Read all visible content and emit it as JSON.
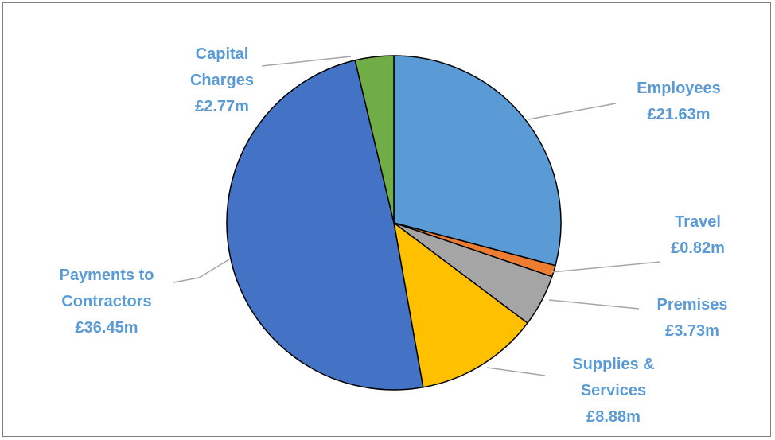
{
  "chart_data": {
    "type": "pie",
    "title": "",
    "slices": [
      {
        "name": "Employees",
        "value_label": "£21.63m",
        "value": 21.63,
        "color": "#5b9bd5"
      },
      {
        "name": "Travel",
        "value_label": "£0.82m",
        "value": 0.82,
        "color": "#ed7d31"
      },
      {
        "name": "Premises",
        "value_label": "£3.73m",
        "value": 3.73,
        "color": "#a5a5a5"
      },
      {
        "name": "Supplies & Services",
        "value_label": "£8.88m",
        "value": 8.88,
        "color": "#ffc000"
      },
      {
        "name": "Payments to Contractors",
        "value_label": "£36.45m",
        "value": 36.45,
        "color": "#4472c4"
      },
      {
        "name": "Capital Charges",
        "value_label": "£2.77m",
        "value": 2.77,
        "color": "#70ad47"
      }
    ],
    "label_color": "#5b9bd5",
    "leader_color": "#a6a6a6"
  }
}
